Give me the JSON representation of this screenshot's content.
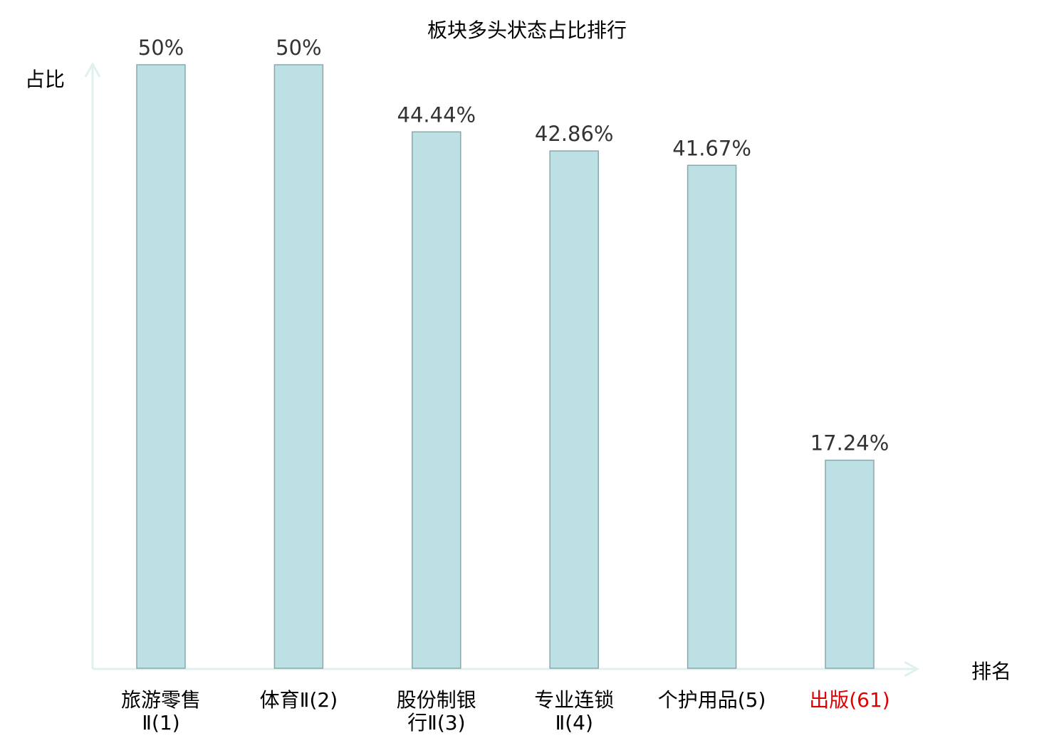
{
  "chart_data": {
    "type": "bar",
    "title": "板块多头状态占比排行",
    "ylabel": "占比",
    "xlabel": "排名",
    "ylim": [
      0,
      50
    ],
    "grid": false,
    "categories": [
      {
        "lines": [
          "旅游零售",
          "Ⅱ(1)"
        ],
        "highlight": false
      },
      {
        "lines": [
          "体育Ⅱ(2)"
        ],
        "highlight": false
      },
      {
        "lines": [
          "股份制银",
          "行Ⅱ(3)"
        ],
        "highlight": false
      },
      {
        "lines": [
          "专业连锁",
          "Ⅱ(4)"
        ],
        "highlight": false
      },
      {
        "lines": [
          "个护用品(5)"
        ],
        "highlight": false
      },
      {
        "lines": [
          "出版(61)"
        ],
        "highlight": true
      }
    ],
    "values": [
      50,
      50,
      44.44,
      42.86,
      41.67,
      17.24
    ],
    "data_labels": [
      "50%",
      "50%",
      "44.44%",
      "42.86%",
      "41.67%",
      "17.24%"
    ],
    "colors": {
      "bar_fill": "#bce0e3",
      "bar_stroke": "#8aa8aa",
      "axis": "#dff1ef",
      "label": "#000000",
      "highlight_label": "#e00000",
      "value_label": "#333333"
    }
  }
}
